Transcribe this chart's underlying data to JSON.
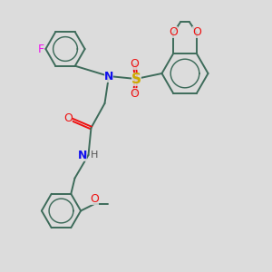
{
  "bg_color": "#dcdcdc",
  "bond_color": "#3d6b5a",
  "N_color": "#1010ee",
  "O_color": "#ee1010",
  "F_color": "#ee10ee",
  "S_color": "#ccaa00",
  "H_color": "#555555",
  "bond_width": 1.4,
  "figsize": [
    3.0,
    3.0
  ],
  "dpi": 100,
  "xlim": [
    0,
    10
  ],
  "ylim": [
    0,
    10
  ]
}
